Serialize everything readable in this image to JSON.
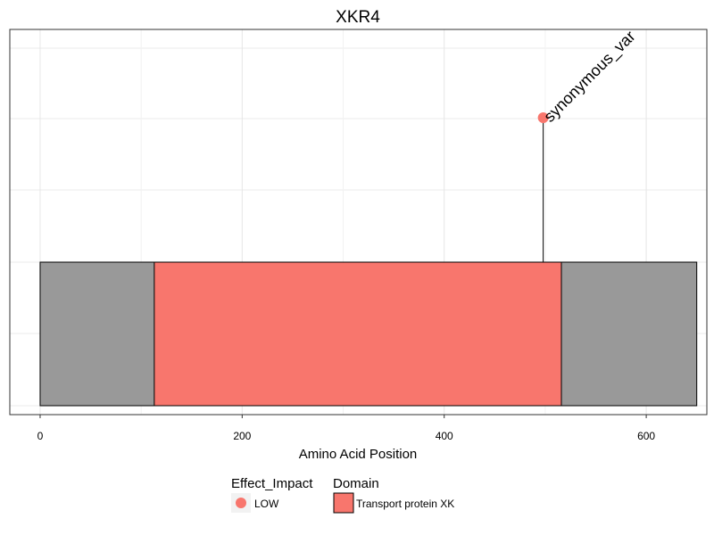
{
  "chart_data": {
    "type": "lollipop",
    "title": "XKR4",
    "xlabel": "Amino Acid Position",
    "ylabel": "",
    "xlim": [
      -30,
      660
    ],
    "x_ticks": [
      0,
      200,
      400,
      600
    ],
    "grid": true,
    "protein": {
      "start": 0,
      "end": 650,
      "color": "#999999"
    },
    "domains": [
      {
        "name": "Transport protein XK",
        "start": 113,
        "end": 516,
        "color": "#F8766D"
      }
    ],
    "mutations": [
      {
        "position": 498,
        "label": "synonymous_variant",
        "label_visible": "synonymous_var",
        "effect_impact": "LOW",
        "color": "#F8766D"
      }
    ],
    "legends": [
      {
        "title": "Effect_Impact",
        "items": [
          {
            "label": "LOW",
            "shape": "circle",
            "color": "#F8766D"
          }
        ]
      },
      {
        "title": "Domain",
        "items": [
          {
            "label": "Transport protein XK",
            "shape": "square",
            "color": "#F8766D"
          }
        ]
      }
    ],
    "legend_position": "bottom"
  }
}
